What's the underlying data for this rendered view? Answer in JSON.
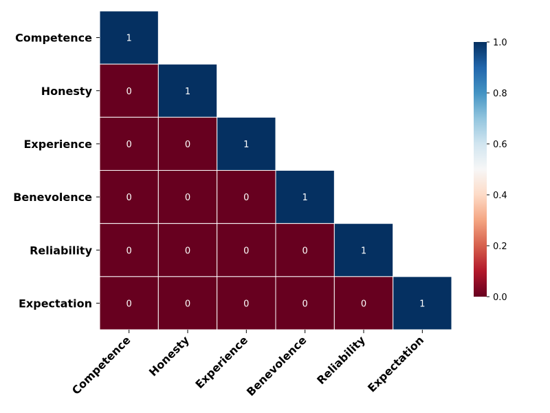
{
  "chart_data": {
    "type": "heatmap",
    "title": "",
    "xlabel": "",
    "ylabel": "",
    "rows": [
      "Competence",
      "Honesty",
      "Experience",
      "Benevolence",
      "Reliability",
      "Expectation"
    ],
    "columns": [
      "Competence",
      "Honesty",
      "Experience",
      "Benevolence",
      "Reliability",
      "Expectation"
    ],
    "mask": "upper-triangle",
    "values": [
      [
        1
      ],
      [
        0,
        1
      ],
      [
        0,
        0,
        1
      ],
      [
        0,
        0,
        0,
        1
      ],
      [
        0,
        0,
        0,
        0,
        1
      ],
      [
        0,
        0,
        0,
        0,
        0,
        1
      ]
    ],
    "colorbar": {
      "colormap": "RdBu",
      "vmin": 0.0,
      "vmax": 1.0,
      "ticks": [
        "0.0",
        "0.2",
        "0.4",
        "0.6",
        "0.8",
        "1.0"
      ],
      "placement": "right"
    },
    "grid": false,
    "colors": {
      "low": "#67001f",
      "high": "#053061",
      "cell_border": "#ffffff",
      "annotation_text": "#ffffff"
    }
  }
}
